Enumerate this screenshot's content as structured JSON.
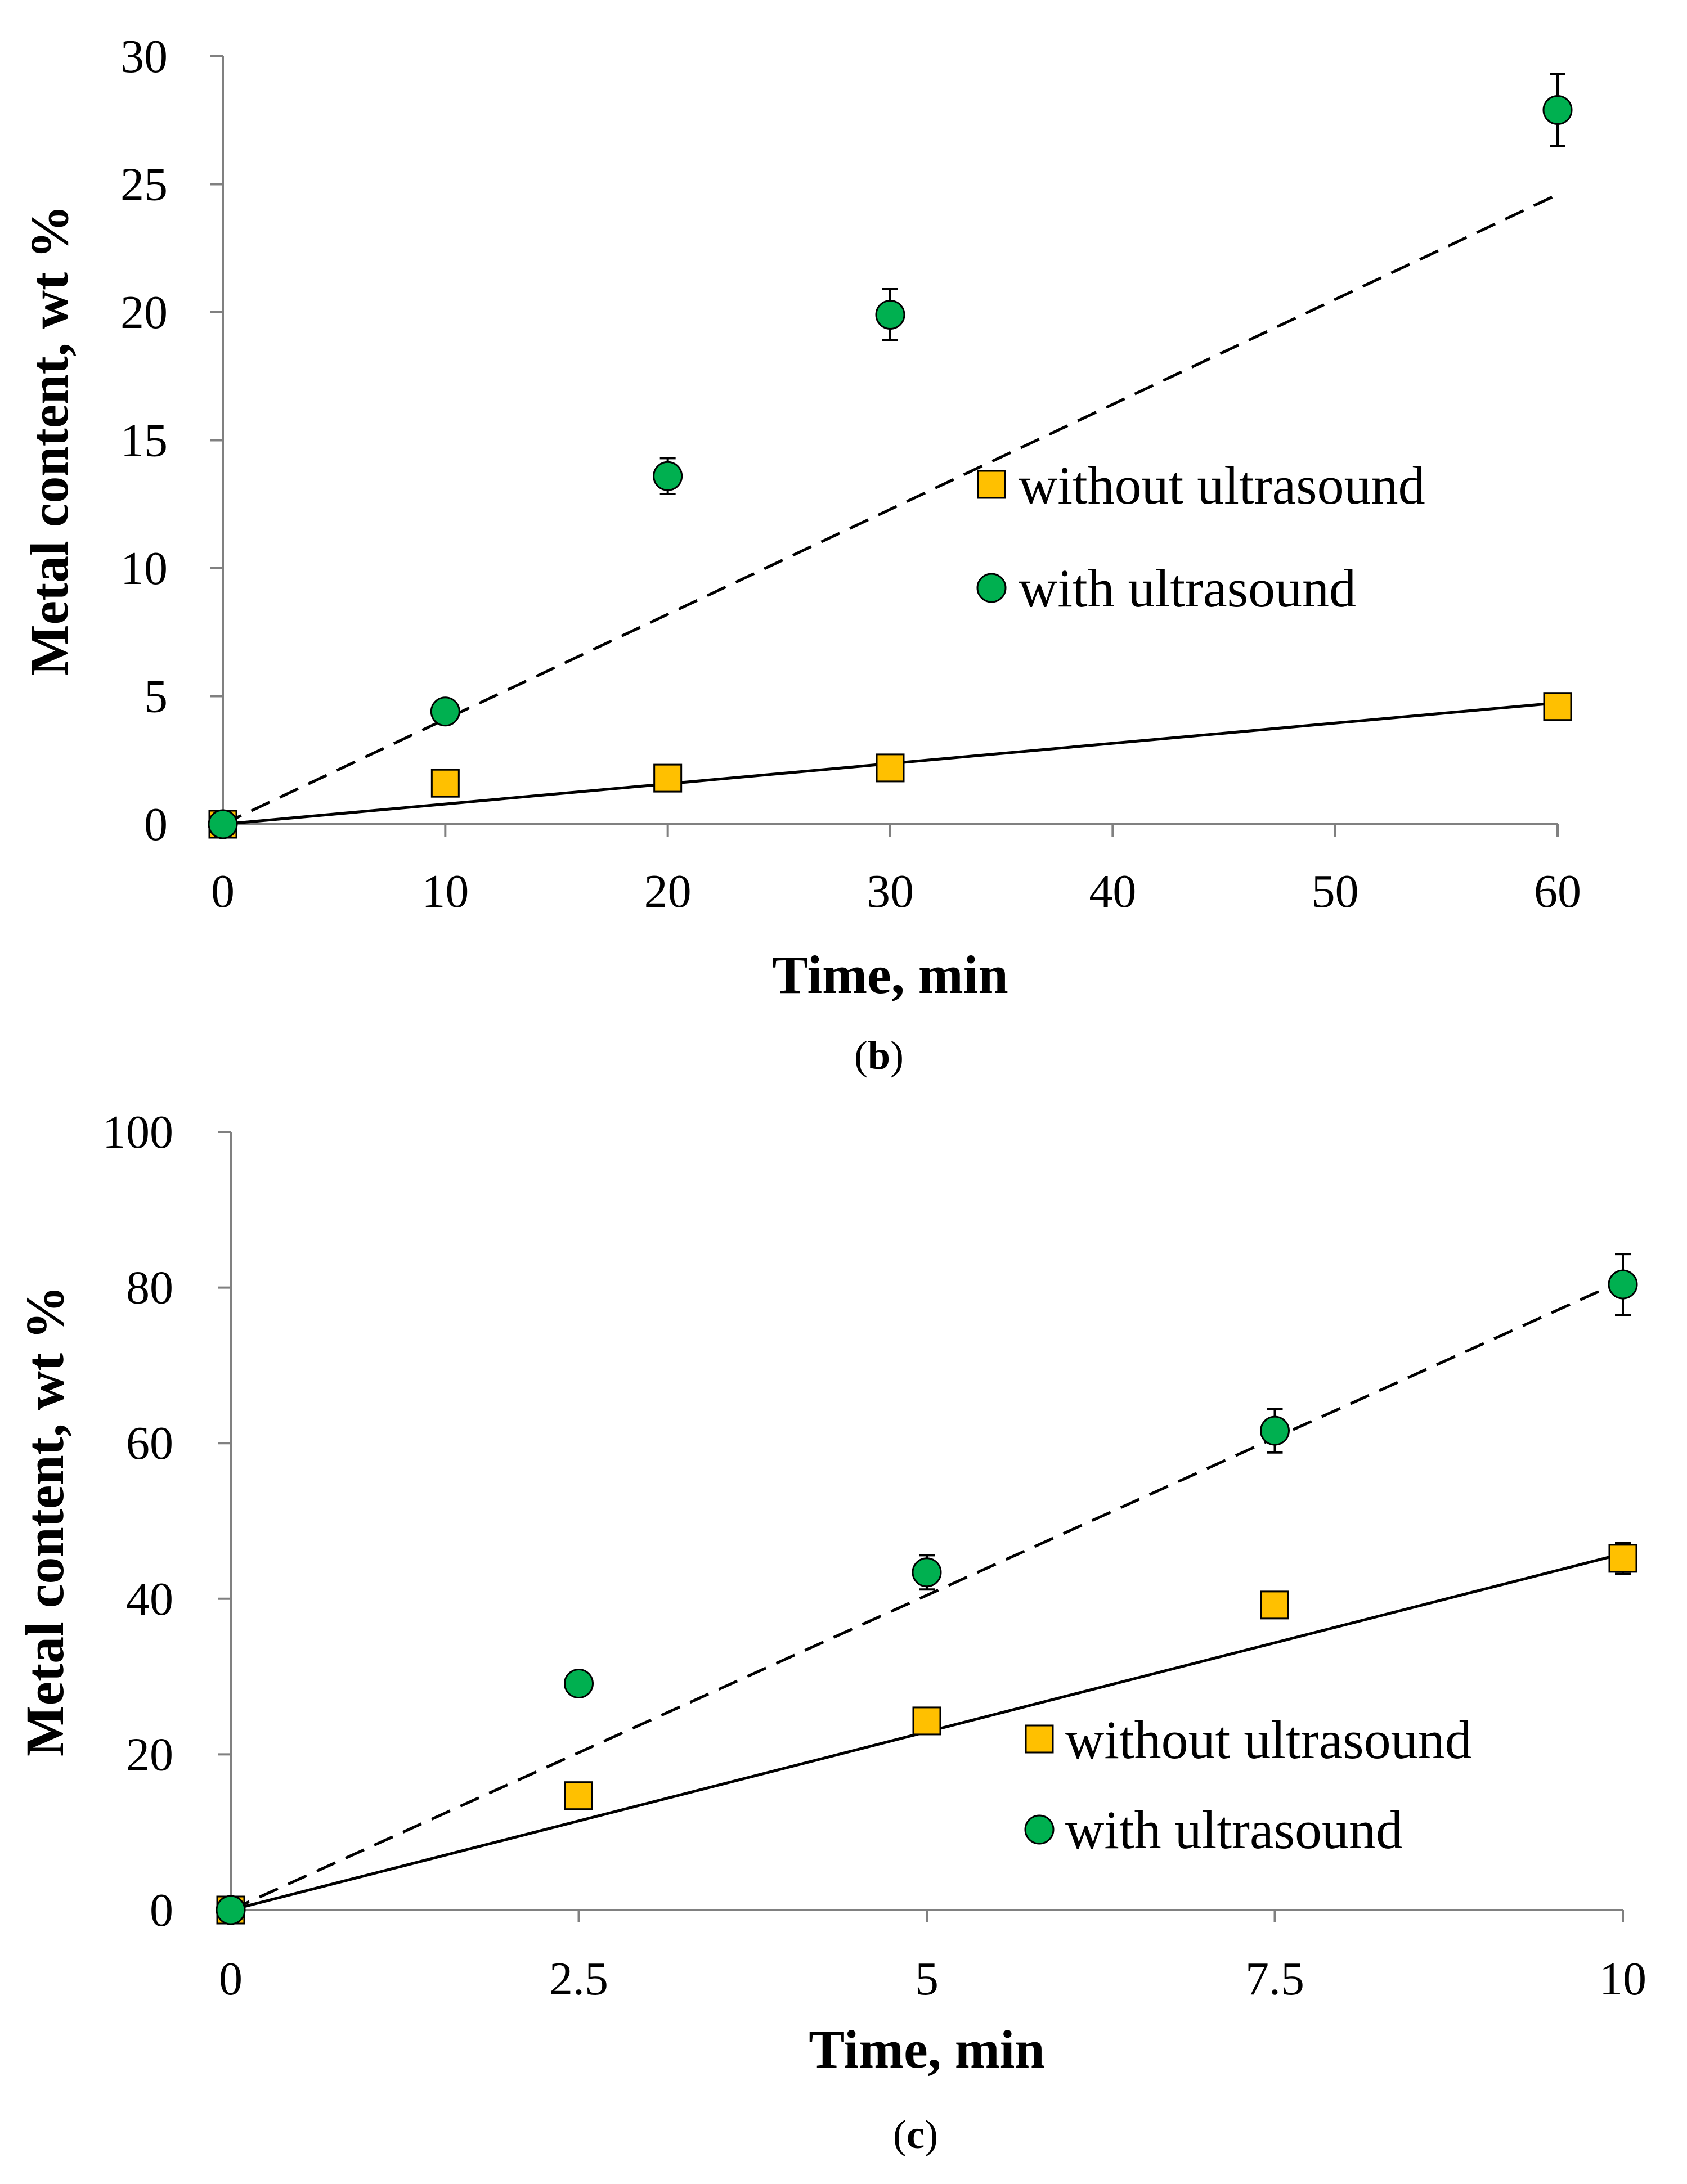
{
  "colors": {
    "without_ultrasound": "#FFC000",
    "with_ultrasound": "#00B050",
    "axis": "#808080",
    "fit_line": "#000000"
  },
  "chart_data": [
    {
      "id": "b",
      "type": "scatter",
      "panel_label": "b",
      "xlabel": "Time, min",
      "ylabel": "Metal content, wt %",
      "xlim": [
        0,
        60
      ],
      "ylim": [
        0,
        30
      ],
      "xticks": [
        0,
        10,
        20,
        30,
        40,
        50,
        60
      ],
      "xtick_labels": [
        "0",
        "10",
        "20",
        "30",
        "40",
        "50",
        "60"
      ],
      "yticks": [
        0,
        5,
        10,
        15,
        20,
        25,
        30
      ],
      "ytick_labels": [
        "0",
        "5",
        "10",
        "15",
        "20",
        "25",
        "30"
      ],
      "legend": "center-right",
      "series": [
        {
          "name": "without ultrasound",
          "marker": "square",
          "x": [
            0,
            10,
            20,
            30,
            60
          ],
          "y": [
            0,
            1.6,
            1.8,
            2.2,
            4.6
          ],
          "yerr": [
            0,
            0,
            0,
            0,
            0
          ],
          "fit": {
            "style": "solid",
            "slope": 0.079
          }
        },
        {
          "name": "with ultrasound",
          "marker": "circle",
          "x": [
            0,
            10,
            20,
            30,
            60
          ],
          "y": [
            0,
            4.4,
            13.6,
            19.9,
            27.9
          ],
          "yerr": [
            0,
            0,
            0.7,
            1.0,
            1.4
          ],
          "fit": {
            "style": "dashed",
            "slope": 0.41
          }
        }
      ]
    },
    {
      "id": "c",
      "type": "scatter",
      "panel_label": "c",
      "xlabel": "Time, min",
      "ylabel": "Metal content, wt %",
      "xlim": [
        0,
        10
      ],
      "ylim": [
        0,
        100
      ],
      "xticks": [
        0,
        2.5,
        5,
        7.5,
        10
      ],
      "xtick_labels": [
        "0",
        "2.5",
        "5",
        "7.5",
        "10"
      ],
      "yticks": [
        0,
        20,
        40,
        60,
        80,
        100
      ],
      "ytick_labels": [
        "0",
        "20",
        "40",
        "60",
        "80",
        "100"
      ],
      "legend": "bottom-right",
      "series": [
        {
          "name": "without ultrasound",
          "marker": "square",
          "x": [
            0,
            2.5,
            5,
            7.5,
            10
          ],
          "y": [
            0,
            14.7,
            24.3,
            39.2,
            45.2
          ],
          "yerr": [
            0,
            0,
            0,
            1.5,
            2.0
          ],
          "fit": {
            "style": "solid",
            "slope": 4.58
          }
        },
        {
          "name": "with ultrasound",
          "marker": "circle",
          "x": [
            0,
            2.5,
            5,
            7.5,
            10
          ],
          "y": [
            0,
            29.1,
            43.4,
            61.6,
            80.4
          ],
          "yerr": [
            0,
            0,
            2.2,
            2.8,
            3.9
          ],
          "fit": {
            "style": "dashed",
            "slope": 8.09
          }
        }
      ]
    }
  ]
}
